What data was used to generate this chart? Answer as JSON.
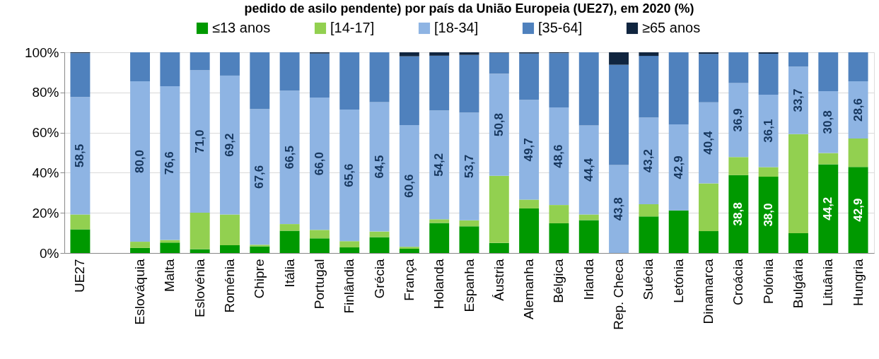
{
  "chart_data": {
    "type": "bar",
    "title": "pedido de asilo pendente) por país da União Europeia (UE27), em 2020 (%)",
    "categories": [
      "UE27",
      null,
      "Eslováquia",
      "Malta",
      "Eslovénia",
      "Roménia",
      "Chipre",
      "Itália",
      "Portugal",
      "Finlândia",
      "Grécia",
      "França",
      "Holanda",
      "Espanha",
      "Áustria",
      "Alemanha",
      "Bélgica",
      "Irlanda",
      "Rep. Checa",
      "Suécia",
      "Letónia",
      "Dinamarca",
      "Croácia",
      "Polónia",
      "Bulgária",
      "Lituânia",
      "Hungria"
    ],
    "series": [
      {
        "name": "≤13 anos",
        "color": "#009900",
        "values": [
          11.8,
          null,
          2.5,
          5.2,
          1.9,
          3.9,
          3.3,
          11.1,
          7.3,
          2.8,
          7.9,
          2.1,
          15.0,
          13.3,
          5.0,
          22.2,
          14.8,
          16.4,
          0,
          18.2,
          21.2,
          10.9,
          38.8,
          38.0,
          9.9,
          44.2,
          42.9
        ],
        "value_labels": [
          null,
          null,
          null,
          null,
          null,
          null,
          null,
          null,
          null,
          null,
          null,
          null,
          null,
          null,
          null,
          null,
          null,
          null,
          null,
          null,
          null,
          null,
          "38,8",
          "38,0",
          null,
          "44,2",
          "42,9"
        ]
      },
      {
        "name": "[14-17]",
        "color": "#92d050",
        "values": [
          7.4,
          null,
          3.1,
          1.3,
          18.2,
          15.3,
          0.8,
          3.3,
          4.2,
          3.1,
          2.8,
          1.0,
          1.8,
          3.0,
          33.5,
          4.4,
          9.1,
          2.8,
          0,
          6.1,
          0,
          23.8,
          9.0,
          4.8,
          49.3,
          5.6,
          14.1
        ]
      },
      {
        "name": "[18-34]",
        "color": "#8eb4e3",
        "values": [
          58.5,
          null,
          80.0,
          76.6,
          71.0,
          69.2,
          67.6,
          66.5,
          66.0,
          65.6,
          64.5,
          60.6,
          54.2,
          53.7,
          50.8,
          49.7,
          48.6,
          44.4,
          43.8,
          43.2,
          42.9,
          40.4,
          36.9,
          36.1,
          33.7,
          30.8,
          28.6
        ],
        "value_labels": [
          "58,5",
          null,
          "80,0",
          "76,6",
          "71,0",
          "69,2",
          "67,6",
          "66,5",
          "66,0",
          "65,6",
          "64,5",
          "60,6",
          "54,2",
          "53,7",
          "50,8",
          "49,7",
          "48,6",
          "44,4",
          "43,8",
          "43,2",
          "42,9",
          "40,4",
          "36,9",
          "36,1",
          "33,7",
          "30,8",
          "28,6"
        ]
      },
      {
        "name": "[35-64]",
        "color": "#4f81bd",
        "values": [
          21.9,
          null,
          14.4,
          16.9,
          8.9,
          11.6,
          28.3,
          19.1,
          21.9,
          28.5,
          24.8,
          34.3,
          27.3,
          28.7,
          10.5,
          23.1,
          27.1,
          36.4,
          50.0,
          30.7,
          35.9,
          24.1,
          15.3,
          20.4,
          7.1,
          19.4,
          14.4
        ]
      },
      {
        "name": "≥65 anos",
        "color": "#10253f",
        "values": [
          0.4,
          null,
          0,
          0,
          0,
          0,
          0,
          0,
          0.6,
          0,
          0,
          2.0,
          1.7,
          1.3,
          0.2,
          0.6,
          0.4,
          0,
          6.2,
          1.8,
          0,
          0.8,
          0,
          0.7,
          0,
          0,
          0
        ]
      }
    ],
    "stacked": true,
    "ylim": [
      0,
      100
    ],
    "yticks": [
      {
        "value": 0,
        "label": "0%"
      },
      {
        "value": 20,
        "label": "20%"
      },
      {
        "value": 40,
        "label": "40%"
      },
      {
        "value": 60,
        "label": "60%"
      },
      {
        "value": 80,
        "label": "80%"
      },
      {
        "value": 100,
        "label": "100%"
      }
    ],
    "grid": "y",
    "legend": "top"
  }
}
